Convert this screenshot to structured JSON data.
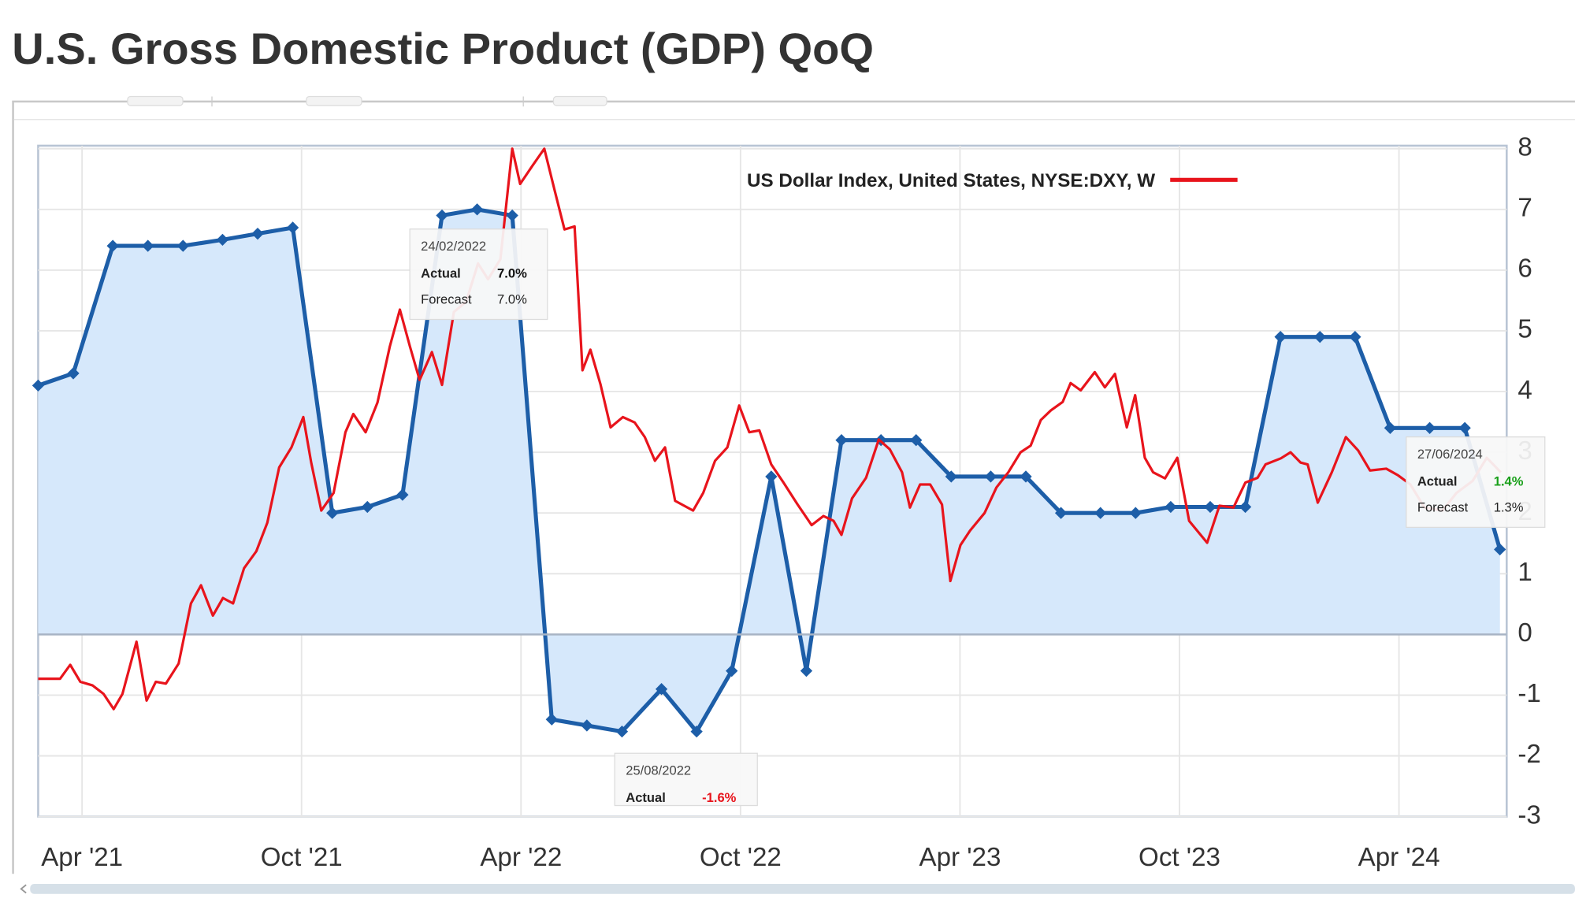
{
  "chart_data": {
    "type": "line",
    "title": "U.S. Gross Domestic Product (GDP) QoQ",
    "xlim": [
      2021.15,
      2024.5
    ],
    "xticks": [
      {
        "value": 2021.25,
        "label": "Apr '21"
      },
      {
        "value": 2021.75,
        "label": "Oct '21"
      },
      {
        "value": 2022.25,
        "label": "Apr '22"
      },
      {
        "value": 2022.75,
        "label": "Oct '22"
      },
      {
        "value": 2023.25,
        "label": "Apr '23"
      },
      {
        "value": 2023.75,
        "label": "Oct '23"
      },
      {
        "value": 2024.25,
        "label": "Apr '24"
      }
    ],
    "ylim": [
      -3,
      8
    ],
    "yticks": [
      -3,
      -2,
      -1,
      0,
      1,
      2,
      3,
      4,
      5,
      6,
      7,
      8
    ],
    "grid": true,
    "legend": "top",
    "series": [
      {
        "color": "#1d5ea8",
        "fill": "#d6e8fb",
        "markers": true,
        "x": [
          2021.15,
          2021.23,
          2021.32,
          2021.4,
          2021.48,
          2021.57,
          2021.65,
          2021.73,
          2021.82,
          2021.9,
          2021.98,
          2022.07,
          2022.15,
          2022.23,
          2022.32,
          2022.4,
          2022.48,
          2022.57,
          2022.65,
          2022.73,
          2022.82,
          2022.9,
          2022.98,
          2023.07,
          2023.15,
          2023.23,
          2023.32,
          2023.4,
          2023.48,
          2023.57,
          2023.65,
          2023.73,
          2023.82,
          2023.9,
          2023.98,
          2024.07,
          2024.15,
          2024.23,
          2024.32,
          2024.4,
          2024.48
        ],
        "values": [
          4.1,
          4.3,
          6.4,
          6.4,
          6.4,
          6.5,
          6.6,
          6.7,
          2.0,
          2.1,
          2.3,
          6.9,
          7.0,
          6.9,
          -1.4,
          -1.5,
          -1.6,
          -0.9,
          -1.6,
          -0.6,
          2.6,
          -0.6,
          3.2,
          3.2,
          3.2,
          2.6,
          2.6,
          2.6,
          2.0,
          2.0,
          2.0,
          2.1,
          2.1,
          2.1,
          4.9,
          4.9,
          4.9,
          3.4,
          3.4,
          3.4,
          1.4
        ]
      },
      {
        "name": "US Dollar Index, United States, NYSE:DXY, W",
        "color": "#e8141c",
        "x": [
          2021.15,
          2021.2,
          2021.223,
          2021.246,
          2021.274,
          2021.299,
          2021.322,
          2021.342,
          2021.374,
          2021.397,
          2021.418,
          2021.441,
          2021.47,
          2021.498,
          2021.521,
          2021.548,
          2021.571,
          2021.594,
          2021.619,
          2021.647,
          2021.672,
          2021.699,
          2021.727,
          2021.754,
          2021.772,
          2021.795,
          2021.823,
          2021.85,
          2021.868,
          2021.896,
          2021.923,
          2021.951,
          2021.974,
          2021.997,
          2022.019,
          2022.047,
          2022.07,
          2022.097,
          2022.125,
          2022.152,
          2022.175,
          2022.203,
          2022.23,
          2022.248,
          2022.276,
          2022.303,
          2022.326,
          2022.349,
          2022.372,
          2022.39,
          2022.408,
          2022.431,
          2022.454,
          2022.482,
          2022.509,
          2022.532,
          2022.555,
          2022.578,
          2022.601,
          2022.642,
          2022.665,
          2022.692,
          2022.72,
          2022.747,
          2022.77,
          2022.793,
          2022.82,
          2022.848,
          2022.88,
          2022.912,
          2022.939,
          2022.962,
          2022.98,
          2023.004,
          2023.036,
          2023.065,
          2023.09,
          2023.118,
          2023.136,
          2023.159,
          2023.182,
          2023.209,
          2023.228,
          2023.251,
          2023.273,
          2023.306,
          2023.333,
          2023.36,
          2023.388,
          2023.411,
          2023.434,
          2023.457,
          2023.484,
          2023.502,
          2023.525,
          2023.557,
          2023.58,
          2023.603,
          2023.63,
          2023.649,
          2023.671,
          2023.69,
          2023.717,
          2023.745,
          2023.772,
          2023.813,
          2023.841,
          2023.873,
          2023.9,
          2023.928,
          2023.946,
          2023.981,
          2024.003,
          2024.026,
          2024.042,
          2024.065,
          2024.097,
          2024.129,
          2024.157,
          2024.184,
          2024.221,
          2024.248,
          2024.276,
          2024.308,
          2024.349,
          2024.381,
          2024.418,
          2024.45,
          2024.482
        ],
        "values": [
          -0.73,
          -0.73,
          -0.5,
          -0.78,
          -0.84,
          -0.98,
          -1.23,
          -0.98,
          -0.12,
          -1.09,
          -0.78,
          -0.81,
          -0.48,
          0.51,
          0.81,
          0.31,
          0.6,
          0.51,
          1.09,
          1.37,
          1.84,
          2.75,
          3.08,
          3.58,
          2.83,
          2.04,
          2.33,
          3.33,
          3.63,
          3.33,
          3.82,
          4.74,
          5.35,
          4.74,
          4.19,
          4.65,
          4.11,
          5.31,
          5.48,
          6.11,
          5.85,
          6.18,
          8.0,
          7.42,
          7.72,
          8.0,
          7.33,
          6.67,
          6.72,
          4.35,
          4.69,
          4.12,
          3.41,
          3.58,
          3.49,
          3.25,
          2.86,
          3.08,
          2.2,
          2.04,
          2.33,
          2.86,
          3.08,
          3.77,
          3.33,
          3.36,
          2.8,
          2.5,
          2.14,
          1.8,
          1.95,
          1.87,
          1.64,
          2.24,
          2.58,
          3.21,
          3.05,
          2.67,
          2.09,
          2.47,
          2.47,
          2.14,
          0.88,
          1.47,
          1.71,
          2.0,
          2.42,
          2.67,
          3.0,
          3.11,
          3.53,
          3.69,
          3.83,
          4.14,
          4.02,
          4.32,
          4.07,
          4.29,
          3.41,
          3.94,
          2.91,
          2.67,
          2.57,
          2.91,
          1.87,
          1.51,
          2.12,
          2.09,
          2.5,
          2.58,
          2.8,
          2.9,
          3.0,
          2.83,
          2.8,
          2.17,
          2.67,
          3.25,
          3.03,
          2.7,
          2.73,
          2.62,
          2.47,
          2.09,
          2.04,
          2.33,
          2.53,
          2.91,
          2.67
        ]
      }
    ],
    "annotations": [
      {
        "date": "24/02/2022",
        "actual_label": "Actual",
        "actual": "7.0%",
        "actual_color": "#111111",
        "forecast_label": "Forecast",
        "forecast": "7.0%"
      },
      {
        "date": "25/08/2022",
        "actual_label": "Actual",
        "actual": "-1.6%",
        "actual_color": "#e8141c"
      },
      {
        "date": "27/06/2024",
        "actual_label": "Actual",
        "actual": "1.4%",
        "actual_color": "#1aa01a",
        "forecast_label": "Forecast",
        "forecast": "1.3%"
      }
    ]
  }
}
